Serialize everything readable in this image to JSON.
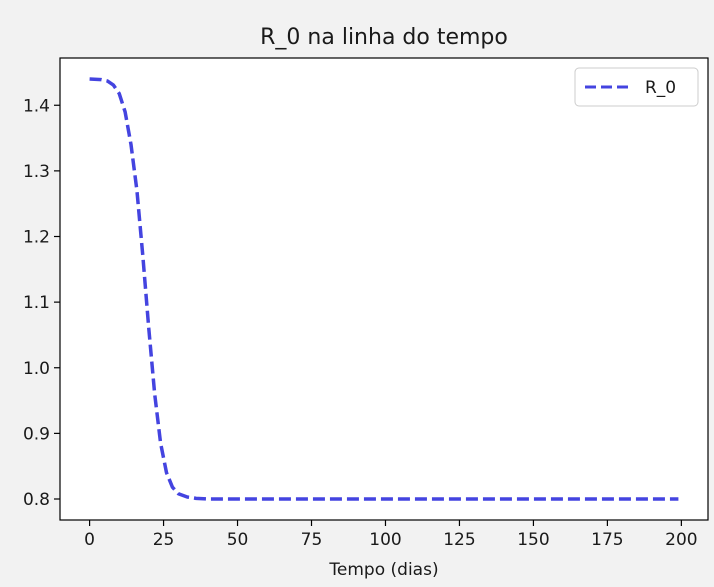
{
  "chart_data": {
    "type": "line",
    "title": "R_0 na linha do tempo",
    "xlabel": "Tempo (dias)",
    "ylabel": "",
    "xlim": [
      -10,
      209
    ],
    "ylim": [
      0.768,
      1.472
    ],
    "xticks": [
      0,
      25,
      50,
      75,
      100,
      125,
      150,
      175,
      200
    ],
    "xtick_labels": [
      "0",
      "25",
      "50",
      "75",
      "100",
      "125",
      "150",
      "175",
      "200"
    ],
    "yticks": [
      0.8,
      0.9,
      1.0,
      1.1,
      1.2,
      1.3,
      1.4
    ],
    "ytick_labels": [
      "0.8",
      "0.9",
      "1.0",
      "1.1",
      "1.2",
      "1.3",
      "1.4"
    ],
    "grid": false,
    "legend": {
      "position": "top-right"
    },
    "series": [
      {
        "name": "R_0",
        "color": "#4444e0",
        "style": "dashed",
        "x": [
          0,
          4,
          6,
          8,
          10,
          12,
          14,
          16,
          18,
          20,
          22,
          24,
          26,
          28,
          30,
          33,
          36,
          40,
          50,
          75,
          100,
          125,
          150,
          175,
          199
        ],
        "y": [
          1.44,
          1.439,
          1.437,
          1.431,
          1.418,
          1.39,
          1.34,
          1.27,
          1.17,
          1.06,
          0.96,
          0.885,
          0.84,
          0.818,
          0.808,
          0.803,
          0.801,
          0.8,
          0.8,
          0.8,
          0.8,
          0.8,
          0.8,
          0.8,
          0.8
        ]
      }
    ]
  }
}
